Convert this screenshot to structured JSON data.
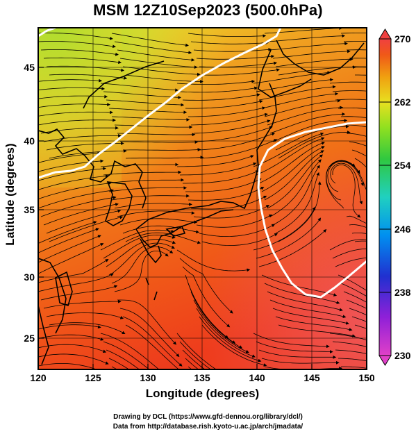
{
  "title": "MSM 12Z10Sep2023 (500.0hPa)",
  "xlabel": "Longitude (degrees)",
  "ylabel": "Latitude  (degrees)",
  "credits": [
    "Drawing by DCL (https://www.gfd-dennou.org/library/dcl/)",
    "Data from http://database.rish.kyoto-u.ac.jp/arch/jmadata/"
  ],
  "map": {
    "lon_range": [
      120,
      150
    ],
    "lat_range": [
      22.4,
      47.6
    ],
    "lon_ticks": [
      "120",
      "125",
      "130",
      "135",
      "140",
      "145",
      "150"
    ],
    "lat_ticks": [
      "25",
      "30",
      "35",
      "40",
      "45"
    ],
    "field": "temperature (K), 500 hPa",
    "overlay": "wind streamlines",
    "contour_color": "#ffffff",
    "coastline_color": "#000000"
  },
  "colorbar": {
    "min": 230,
    "max": 270,
    "tick_labels": [
      "270",
      "262",
      "254",
      "246",
      "238",
      "230"
    ],
    "colors": [
      "#f04a78",
      "#e040e0",
      "#8020d0",
      "#2030d0",
      "#0090f0",
      "#20d0c0",
      "#20c040",
      "#80e020",
      "#e8e020",
      "#f0b010",
      "#f07010",
      "#f04020",
      "#f06060"
    ]
  }
}
